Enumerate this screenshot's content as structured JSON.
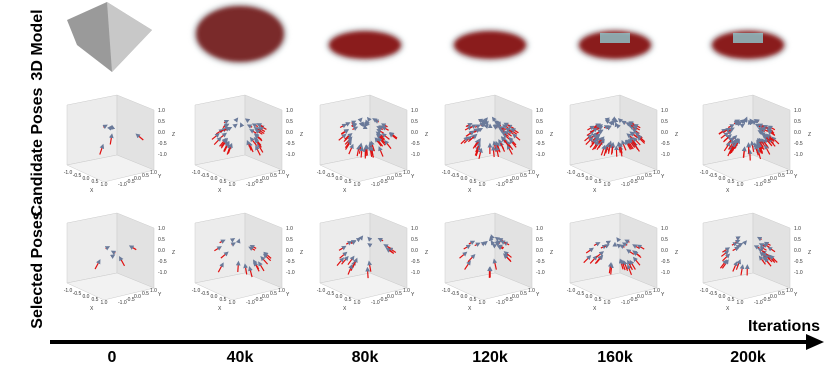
{
  "row_labels": [
    "3D Model",
    "Candidate Poses",
    "Selected Poses"
  ],
  "axis_label": "Iterations",
  "iterations": [
    "0",
    "40k",
    "80k",
    "120k",
    "160k",
    "200k"
  ],
  "axis_names": [
    "X",
    "Y",
    "Z"
  ],
  "ticks": [
    "-1.0",
    "-0.5",
    "0.0",
    "0.5",
    "1.0"
  ]
}
